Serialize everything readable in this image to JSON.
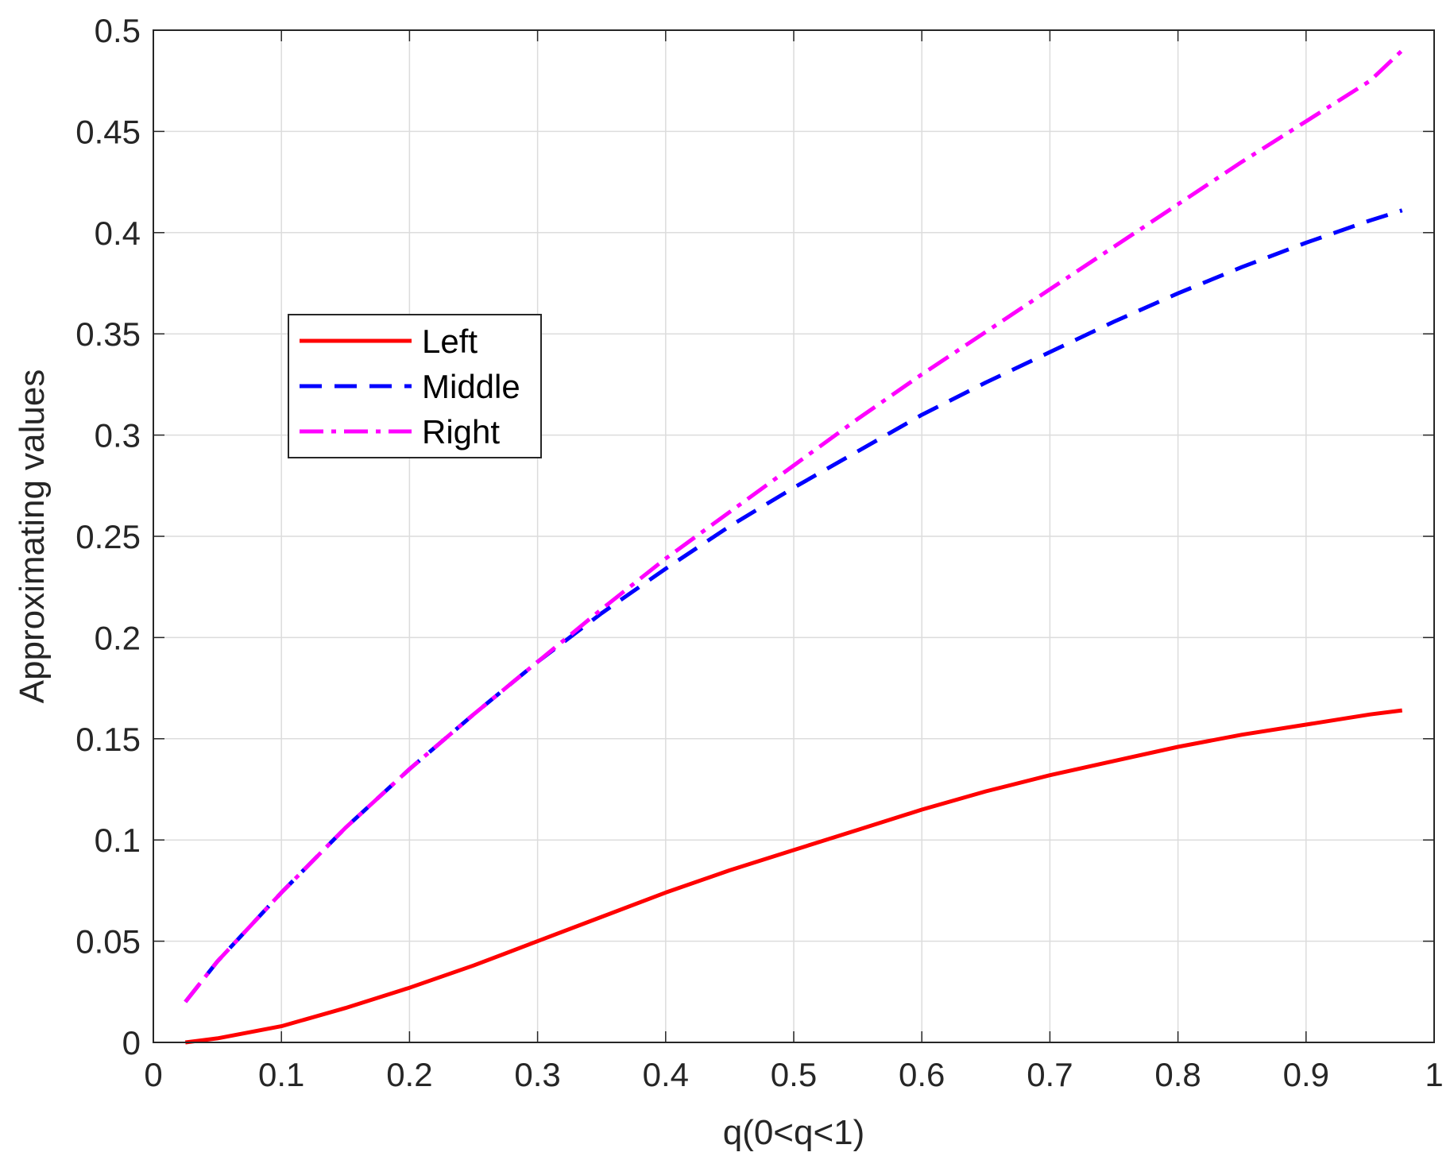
{
  "chart_data": {
    "type": "line",
    "title": "",
    "xlabel": "q(0<q<1)",
    "ylabel": "Approximating values",
    "xlim": [
      0,
      1
    ],
    "ylim": [
      0,
      0.5
    ],
    "xticks": [
      "0",
      "0.1",
      "0.2",
      "0.3",
      "0.4",
      "0.5",
      "0.6",
      "0.7",
      "0.8",
      "0.9",
      "1"
    ],
    "yticks": [
      "0",
      "0.05",
      "0.1",
      "0.15",
      "0.2",
      "0.25",
      "0.3",
      "0.35",
      "0.4",
      "0.45",
      "0.5"
    ],
    "grid": true,
    "legend_position": "upper-left",
    "x": [
      0.025,
      0.05,
      0.1,
      0.15,
      0.2,
      0.25,
      0.3,
      0.35,
      0.4,
      0.45,
      0.5,
      0.55,
      0.6,
      0.65,
      0.7,
      0.75,
      0.8,
      0.85,
      0.9,
      0.95,
      0.975
    ],
    "series": [
      {
        "name": "Left",
        "color": "#ff0000",
        "style": "solid",
        "values": [
          0.0,
          0.002,
          0.008,
          0.017,
          0.027,
          0.038,
          0.05,
          0.062,
          0.074,
          0.085,
          0.095,
          0.105,
          0.115,
          0.124,
          0.132,
          0.139,
          0.146,
          0.152,
          0.157,
          0.162,
          0.164
        ]
      },
      {
        "name": "Middle",
        "color": "#0000ff",
        "style": "dashed",
        "values": [
          0.02,
          0.04,
          0.074,
          0.106,
          0.135,
          0.162,
          0.188,
          0.212,
          0.234,
          0.255,
          0.274,
          0.292,
          0.31,
          0.326,
          0.341,
          0.356,
          0.37,
          0.383,
          0.395,
          0.406,
          0.411
        ]
      },
      {
        "name": "Right",
        "color": "#ff00ff",
        "style": "dashdot",
        "values": [
          0.02,
          0.04,
          0.074,
          0.106,
          0.135,
          0.162,
          0.188,
          0.214,
          0.239,
          0.262,
          0.285,
          0.308,
          0.33,
          0.351,
          0.372,
          0.393,
          0.414,
          0.435,
          0.455,
          0.475,
          0.49
        ]
      }
    ]
  }
}
